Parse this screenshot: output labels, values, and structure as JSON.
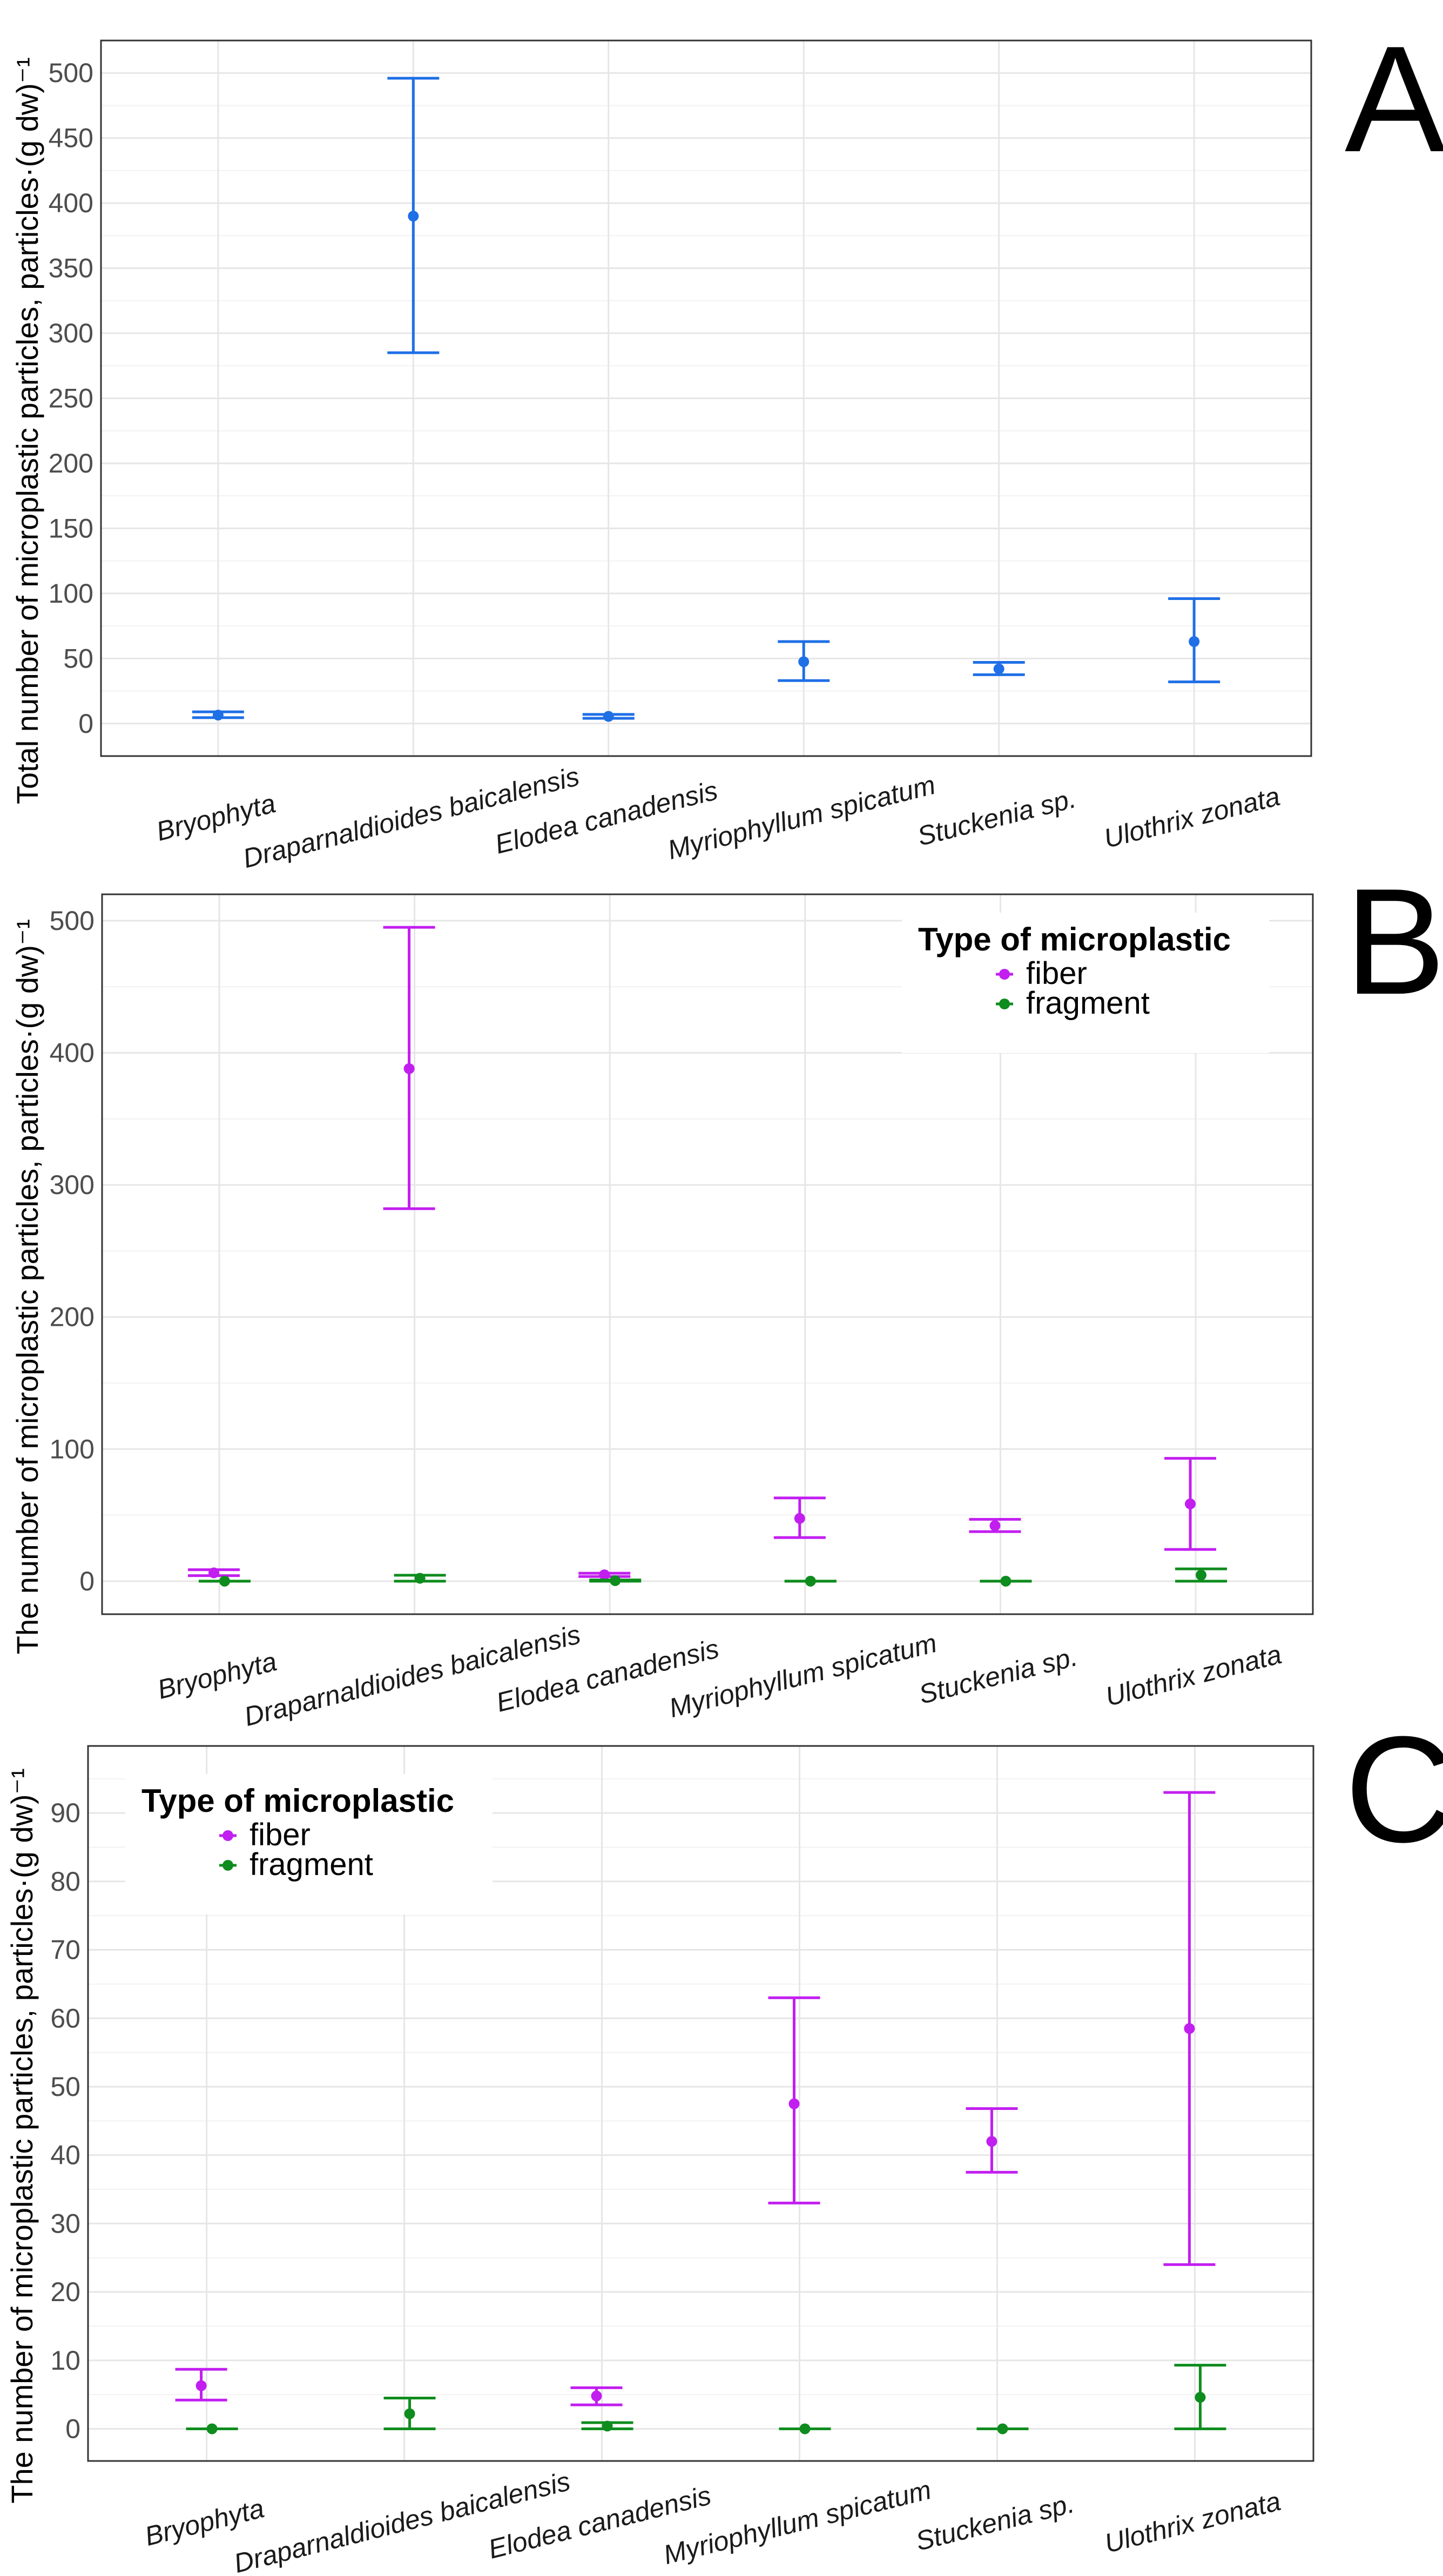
{
  "chart_data": [
    {
      "type": "scatter",
      "panel_label": "A",
      "title": "",
      "xlabel": "",
      "ylabel": "Total number of microplastic particles, particles·(g dw)⁻¹",
      "categories": [
        "Bryophyta",
        "Draparnaldioides baicalensis",
        "Elodea canadensis",
        "Myriophyllum spicatum",
        "Stuckenia sp.",
        "Ulothrix zonata"
      ],
      "ylim": [
        -25,
        525
      ],
      "yticks": [
        0,
        50,
        100,
        150,
        200,
        250,
        300,
        350,
        400,
        450,
        500
      ],
      "grid": true,
      "legend": null,
      "series": [
        {
          "name": "total",
          "color": "#1f6fe6",
          "values": [
            6.5,
            390,
            5.5,
            47.5,
            42,
            63
          ],
          "lower": [
            4.5,
            285,
            4,
            33,
            37.5,
            32
          ],
          "upper": [
            9,
            496,
            7,
            63,
            47,
            96
          ]
        }
      ]
    },
    {
      "type": "scatter",
      "panel_label": "B",
      "title": "",
      "xlabel": "",
      "ylabel": "The number of microplastic particles, particles·(g dw)⁻¹",
      "categories": [
        "Bryophyta",
        "Draparnaldioides baicalensis",
        "Elodea canadensis",
        "Myriophyllum spicatum",
        "Stuckenia sp.",
        "Ulothrix zonata"
      ],
      "ylim": [
        -25,
        520
      ],
      "yticks": [
        0,
        100,
        200,
        300,
        400,
        500
      ],
      "grid": true,
      "legend": {
        "title": "Type of microplastic",
        "position": "top-right"
      },
      "series": [
        {
          "name": "fiber",
          "color": "#c21ef0",
          "values": [
            6.3,
            388,
            4.8,
            47.5,
            42,
            58.5
          ],
          "lower": [
            4.2,
            282,
            3.5,
            33,
            37.5,
            24
          ],
          "upper": [
            8.7,
            495,
            6,
            63,
            46.8,
            93
          ]
        },
        {
          "name": "fragment",
          "color": "#0e8c1e",
          "values": [
            0,
            2.2,
            0.4,
            0,
            0,
            4.6
          ],
          "lower": [
            0,
            0,
            0,
            0,
            0,
            0
          ],
          "upper": [
            0,
            4.5,
            0.9,
            0,
            0,
            9.3
          ]
        }
      ]
    },
    {
      "type": "scatter",
      "panel_label": "C",
      "title": "",
      "xlabel": "",
      "ylabel": "The number of microplastic particles, particles·(g dw)⁻¹",
      "categories": [
        "Bryophyta",
        "Draparnaldioides baicalensis",
        "Elodea canadensis",
        "Myriophyllum spicatum",
        "Stuckenia sp.",
        "Ulothrix zonata"
      ],
      "ylim": [
        -4.7,
        99.8
      ],
      "yticks": [
        0,
        10,
        20,
        30,
        40,
        50,
        60,
        70,
        80,
        90
      ],
      "grid": true,
      "legend": {
        "title": "Type of microplastic",
        "position": "top-left"
      },
      "series": [
        {
          "name": "fiber",
          "color": "#c21ef0",
          "values": [
            6.3,
            null,
            4.8,
            47.5,
            42,
            58.5
          ],
          "lower": [
            4.2,
            null,
            3.5,
            33,
            37.5,
            24
          ],
          "upper": [
            8.7,
            null,
            6,
            63,
            46.8,
            93
          ]
        },
        {
          "name": "fragment",
          "color": "#0e8c1e",
          "values": [
            0,
            2.2,
            0.4,
            0,
            0,
            4.6
          ],
          "lower": [
            0,
            0,
            0,
            0,
            0,
            0
          ],
          "upper": [
            0,
            4.5,
            0.9,
            0,
            0,
            9.3
          ]
        }
      ]
    }
  ]
}
